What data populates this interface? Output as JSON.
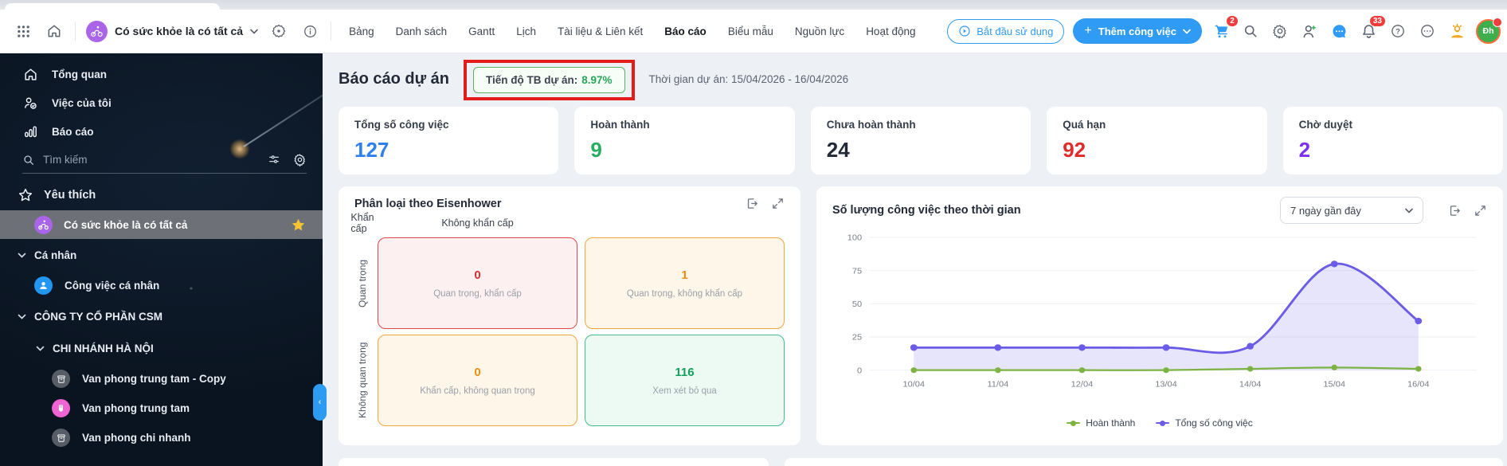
{
  "icons": {
    "plus": "+",
    "question": "?",
    "info": "i",
    "ellipsis": "⋯",
    "collapse": "‹"
  },
  "topbar": {
    "workspace_name": "Có sức khỏe là có tất cả",
    "tabs": [
      "Bảng",
      "Danh sách",
      "Gantt",
      "Lịch",
      "Tài liệu & Liên kết",
      "Báo cáo",
      "Biểu mẫu",
      "Nguồn lực",
      "Hoạt động"
    ],
    "active_tab": "Báo cáo",
    "start_using_label": "Bắt đầu sử dụng",
    "add_task_label": "Thêm công việc",
    "cart_badge": "2",
    "bell_badge": "33",
    "avatar_initials": "Đh"
  },
  "sidebar": {
    "overview": "Tổng quan",
    "my_tasks": "Việc của tôi",
    "reports": "Báo cáo",
    "search_placeholder": "Tìm kiếm",
    "favorites": "Yêu thích",
    "favorite_project": "Có sức khỏe là có tất cả",
    "personal_section": "Cá nhân",
    "personal_tasks": "Công việc cá nhân",
    "company_section": "CÔNG TY CỔ PHẦN CSM",
    "branch_section": "CHI NHÁNH HÀ NỘI",
    "projects": [
      "Van phong trung tam - Copy",
      "Van phong trung tam",
      "Van phong chi nhanh"
    ]
  },
  "report": {
    "title": "Báo cáo dự án",
    "avg_progress_label": "Tiến độ TB dự án:",
    "avg_progress_value": "8.97%",
    "duration_text": "Thời gian dự án: 15/04/2026 - 16/04/2026",
    "stats": [
      {
        "label": "Tổng số công việc",
        "value": "127",
        "color": "#2f80ed"
      },
      {
        "label": "Hoàn thành",
        "value": "9",
        "color": "#27ae60"
      },
      {
        "label": "Chưa hoàn thành",
        "value": "24",
        "color": "#222a38"
      },
      {
        "label": "Quá hạn",
        "value": "92",
        "color": "#e02b2b"
      },
      {
        "label": "Chờ duyệt",
        "value": "2",
        "color": "#7b2ff2"
      }
    ]
  },
  "eisenhower": {
    "title": "Phân loại theo Eisenhower",
    "col_headers": [
      "Khẩn cấp",
      "Không khẩn cấp"
    ],
    "row_headers": [
      "Quan trọng",
      "Không quan trọng"
    ],
    "cells": [
      {
        "value": "0",
        "label": "Quan trọng, khẩn cấp"
      },
      {
        "value": "1",
        "label": "Quan trọng, không khẩn cấp"
      },
      {
        "value": "0",
        "label": "Khẩn cấp, không quan trọng"
      },
      {
        "value": "116",
        "label": "Xem xét bỏ qua"
      }
    ]
  },
  "chart_data": {
    "type": "area",
    "title": "Số lượng công việc theo thời gian",
    "range_selector": "7 ngày gần đây",
    "x": [
      "10/04",
      "11/04",
      "12/04",
      "13/04",
      "14/04",
      "15/04",
      "16/04"
    ],
    "yticks": [
      0,
      25,
      50,
      75,
      100
    ],
    "ylim": [
      0,
      100
    ],
    "grid": true,
    "legend_position": "bottom",
    "series": [
      {
        "name": "Hoàn thành",
        "color": "#7cb342",
        "fill": false,
        "values": [
          0,
          0,
          0,
          0,
          1,
          2,
          1
        ]
      },
      {
        "name": "Tổng số công việc",
        "color": "#6b5ce8",
        "fill": true,
        "values": [
          17,
          17,
          17,
          17,
          18,
          80,
          37
        ]
      }
    ]
  }
}
